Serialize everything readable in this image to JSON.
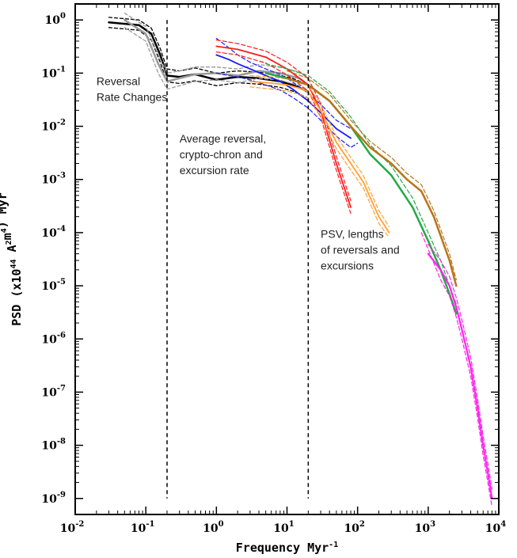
{
  "chart_data": {
    "type": "line",
    "title": "",
    "xlabel": "Frequency Myr^-1",
    "ylabel": "PSD (x10^44 A^2m^4) Myr",
    "xscale": "log",
    "yscale": "log",
    "xlim": [
      0.01,
      10000
    ],
    "ylim": [
      5e-10,
      2
    ],
    "grid": false,
    "legend": "none",
    "x_ticks": [
      {
        "value": 0.01,
        "base": "10",
        "exp": "-2"
      },
      {
        "value": 0.1,
        "base": "10",
        "exp": "-1"
      },
      {
        "value": 1,
        "base": "10",
        "exp": "0"
      },
      {
        "value": 10,
        "base": "10",
        "exp": "1"
      },
      {
        "value": 100,
        "base": "10",
        "exp": "2"
      },
      {
        "value": 1000,
        "base": "10",
        "exp": "3"
      },
      {
        "value": 10000,
        "base": "10",
        "exp": "4"
      }
    ],
    "y_ticks": [
      {
        "value": 1,
        "base": "10",
        "exp": "0"
      },
      {
        "value": 0.1,
        "base": "10",
        "exp": "-1"
      },
      {
        "value": 0.01,
        "base": "10",
        "exp": "-2"
      },
      {
        "value": 0.001,
        "base": "10",
        "exp": "-3"
      },
      {
        "value": 0.0001,
        "base": "10",
        "exp": "-4"
      },
      {
        "value": 1e-05,
        "base": "10",
        "exp": "-5"
      },
      {
        "value": 1e-06,
        "base": "10",
        "exp": "-6"
      },
      {
        "value": 1e-07,
        "base": "10",
        "exp": "-7"
      },
      {
        "value": 1e-08,
        "base": "10",
        "exp": "-8"
      },
      {
        "value": 1e-09,
        "base": "10",
        "exp": "-9"
      }
    ],
    "vlines": [
      0.2,
      20
    ],
    "vline_range": [
      1e-09,
      1
    ],
    "annotations": [
      {
        "lines": [
          "Reversal",
          "Rate Changes"
        ],
        "x": 0.02,
        "y": 0.06
      },
      {
        "lines": [
          "Average reversal,",
          "crypto-chron and",
          "excursion rate"
        ],
        "x": 0.3,
        "y": 0.005
      },
      {
        "lines": [
          "PSV,  lengths",
          "of reversals and",
          "excursions"
        ],
        "x": 30,
        "y": 8e-05
      }
    ],
    "series": [
      {
        "color": "#000000",
        "width": 2.5,
        "x": [
          0.03,
          0.08,
          0.12,
          0.16,
          0.2,
          0.3,
          0.5,
          1,
          2,
          4,
          8,
          12,
          20
        ],
        "y": [
          0.9,
          0.8,
          0.55,
          0.22,
          0.09,
          0.085,
          0.095,
          0.075,
          0.085,
          0.08,
          0.07,
          0.06,
          0.045
        ]
      },
      {
        "color": "#000000",
        "width": 1.3,
        "dash": "4,3",
        "x": [
          0.03,
          0.08,
          0.12,
          0.16,
          0.2,
          0.3,
          0.5,
          1,
          2,
          4,
          8,
          12,
          20
        ],
        "y": [
          1.12,
          1.0,
          0.7,
          0.29,
          0.12,
          0.11,
          0.125,
          0.1,
          0.11,
          0.105,
          0.09,
          0.08,
          0.06
        ]
      },
      {
        "color": "#000000",
        "width": 1.3,
        "dash": "4,3",
        "x": [
          0.03,
          0.08,
          0.12,
          0.16,
          0.2,
          0.3,
          0.5,
          1,
          2,
          4,
          8,
          12,
          20
        ],
        "y": [
          0.72,
          0.64,
          0.42,
          0.16,
          0.068,
          0.064,
          0.072,
          0.058,
          0.066,
          0.062,
          0.054,
          0.046,
          0.034
        ]
      },
      {
        "color": "#999999",
        "width": 2.5,
        "x": [
          0.05,
          0.1,
          0.15,
          0.2,
          0.3,
          0.5,
          1,
          2,
          4,
          8,
          15,
          20
        ],
        "y": [
          1.0,
          0.55,
          0.15,
          0.07,
          0.08,
          0.095,
          0.1,
          0.09,
          0.11,
          0.1,
          0.08,
          0.06
        ]
      },
      {
        "color": "#999999",
        "width": 1.3,
        "dash": "4,3",
        "x": [
          0.05,
          0.1,
          0.15,
          0.2,
          0.3,
          0.5,
          1,
          2,
          4,
          8,
          15,
          20
        ],
        "y": [
          1.35,
          0.75,
          0.22,
          0.1,
          0.11,
          0.13,
          0.13,
          0.12,
          0.145,
          0.13,
          0.105,
          0.08
        ]
      },
      {
        "color": "#999999",
        "width": 1.3,
        "dash": "4,3",
        "x": [
          0.05,
          0.1,
          0.15,
          0.2,
          0.3,
          0.5,
          1,
          2,
          4,
          8,
          15,
          20
        ],
        "y": [
          0.72,
          0.4,
          0.1,
          0.05,
          0.058,
          0.07,
          0.075,
          0.066,
          0.08,
          0.074,
          0.058,
          0.044
        ]
      },
      {
        "color": "#1a1aff",
        "width": 1.8,
        "x": [
          1,
          1.5,
          2,
          3,
          5,
          8,
          12,
          20,
          30,
          50,
          80
        ],
        "y": [
          0.22,
          0.18,
          0.15,
          0.12,
          0.09,
          0.07,
          0.05,
          0.03,
          0.018,
          0.009,
          0.006
        ]
      },
      {
        "color": "#1a1aff",
        "width": 1.2,
        "dash": "5,3",
        "x": [
          1,
          1.5,
          2,
          3,
          5,
          8,
          12,
          20,
          30,
          50,
          80
        ],
        "y": [
          0.45,
          0.3,
          0.22,
          0.16,
          0.12,
          0.095,
          0.068,
          0.042,
          0.026,
          0.013,
          0.009
        ]
      },
      {
        "color": "#1a1aff",
        "width": 1.2,
        "dash": "5,3",
        "x": [
          1,
          1.5,
          2,
          3,
          5,
          8,
          12,
          20,
          30,
          50,
          80,
          100
        ],
        "y": [
          0.1,
          0.09,
          0.085,
          0.075,
          0.06,
          0.048,
          0.035,
          0.022,
          0.013,
          0.0065,
          0.004,
          0.0048
        ]
      },
      {
        "color": "#ff1a1a",
        "width": 1.8,
        "x": [
          1,
          2,
          5,
          10,
          20,
          30,
          50,
          80
        ],
        "y": [
          0.32,
          0.28,
          0.2,
          0.12,
          0.06,
          0.02,
          0.002,
          0.0003
        ]
      },
      {
        "color": "#ff1a1a",
        "width": 1.2,
        "dash": "5,3",
        "x": [
          1,
          2,
          5,
          10,
          20,
          30,
          50,
          80
        ],
        "y": [
          0.42,
          0.36,
          0.26,
          0.16,
          0.08,
          0.027,
          0.0027,
          0.0004
        ]
      },
      {
        "color": "#ff1a1a",
        "width": 1.2,
        "dash": "5,3",
        "x": [
          1,
          2,
          5,
          10,
          20,
          30,
          50,
          80
        ],
        "y": [
          0.25,
          0.22,
          0.155,
          0.093,
          0.046,
          0.015,
          0.0015,
          0.00023
        ]
      },
      {
        "color": "#ffa033",
        "width": 1.8,
        "x": [
          3,
          6,
          10,
          15,
          20,
          30,
          50,
          80,
          120,
          200,
          280
        ],
        "y": [
          0.07,
          0.065,
          0.06,
          0.052,
          0.045,
          0.02,
          0.005,
          0.002,
          0.0009,
          0.0002,
          0.0001
        ]
      },
      {
        "color": "#ffa033",
        "width": 1.2,
        "dash": "5,3",
        "x": [
          3,
          6,
          10,
          15,
          20,
          30,
          50,
          80,
          120,
          200,
          280
        ],
        "y": [
          0.09,
          0.085,
          0.078,
          0.068,
          0.058,
          0.026,
          0.0065,
          0.0026,
          0.0012,
          0.00026,
          0.00013
        ]
      },
      {
        "color": "#ffa033",
        "width": 1.2,
        "dash": "5,3",
        "x": [
          3,
          6,
          10,
          15,
          20,
          30,
          50,
          80,
          120,
          200,
          280
        ],
        "y": [
          0.055,
          0.05,
          0.046,
          0.04,
          0.034,
          0.015,
          0.0038,
          0.0015,
          0.0007,
          0.00015,
          8e-05
        ]
      },
      {
        "color": "#22aa44",
        "width": 2.5,
        "x": [
          5,
          10,
          20,
          40,
          80,
          150,
          300,
          600,
          1000,
          1500,
          2000,
          2500
        ],
        "y": [
          0.1,
          0.08,
          0.06,
          0.03,
          0.01,
          0.003,
          0.0012,
          0.0003,
          7e-05,
          2e-05,
          7e-06,
          3e-06
        ]
      },
      {
        "color": "#22aa44",
        "width": 1.2,
        "dash": "5,3",
        "x": [
          5,
          10,
          20,
          40,
          80,
          150,
          300,
          600,
          1000,
          1500,
          2000,
          2500
        ],
        "y": [
          0.15,
          0.12,
          0.09,
          0.045,
          0.015,
          0.0045,
          0.0018,
          0.00045,
          0.0001,
          3e-05,
          1e-05,
          4.5e-06
        ]
      },
      {
        "color": "#ff22ee",
        "width": 2.2,
        "x": [
          1000,
          1500,
          2000,
          2500,
          3000,
          4000,
          5000,
          6000,
          7000,
          8000
        ],
        "y": [
          4e-05,
          2e-05,
          1e-05,
          4e-06,
          1.5e-06,
          3e-07,
          5e-08,
          1e-08,
          3e-09,
          1e-09
        ]
      },
      {
        "color": "#ff22ee",
        "width": 1.2,
        "dash": "5,3",
        "x": [
          1000,
          1500,
          2000,
          2500,
          3000,
          4000,
          5000,
          6000,
          7000,
          8000
        ],
        "y": [
          6e-05,
          3e-05,
          1.5e-05,
          6e-06,
          2.3e-06,
          4.5e-07,
          7.5e-08,
          1.5e-08,
          4.5e-09,
          1.5e-09
        ]
      },
      {
        "color": "#ff22ee",
        "width": 1.2,
        "dash": "5,3",
        "x": [
          800,
          1500,
          2000,
          2500,
          3000,
          4000,
          5000,
          6000,
          7000,
          8000
        ],
        "y": [
          0.0001,
          1.3e-05,
          6.5e-06,
          2.6e-06,
          1e-06,
          2e-07,
          3.3e-08,
          6.5e-09,
          2e-09,
          7e-10
        ]
      },
      {
        "color": "#b8741a",
        "width": 2.5,
        "x": [
          10,
          20,
          40,
          80,
          150,
          300,
          500,
          800,
          1200,
          2000,
          2500
        ],
        "y": [
          0.08,
          0.06,
          0.03,
          0.01,
          0.004,
          0.002,
          0.001,
          0.0006,
          0.0002,
          3e-05,
          1e-05
        ]
      },
      {
        "color": "#b8741a",
        "width": 1.2,
        "dash": "5,3",
        "x": [
          10,
          20,
          40,
          80,
          150,
          300,
          500,
          800,
          1200,
          2000,
          2500
        ],
        "y": [
          0.11,
          0.08,
          0.04,
          0.013,
          0.0052,
          0.0026,
          0.0013,
          0.0008,
          0.00026,
          4e-05,
          1.3e-05
        ]
      }
    ]
  }
}
